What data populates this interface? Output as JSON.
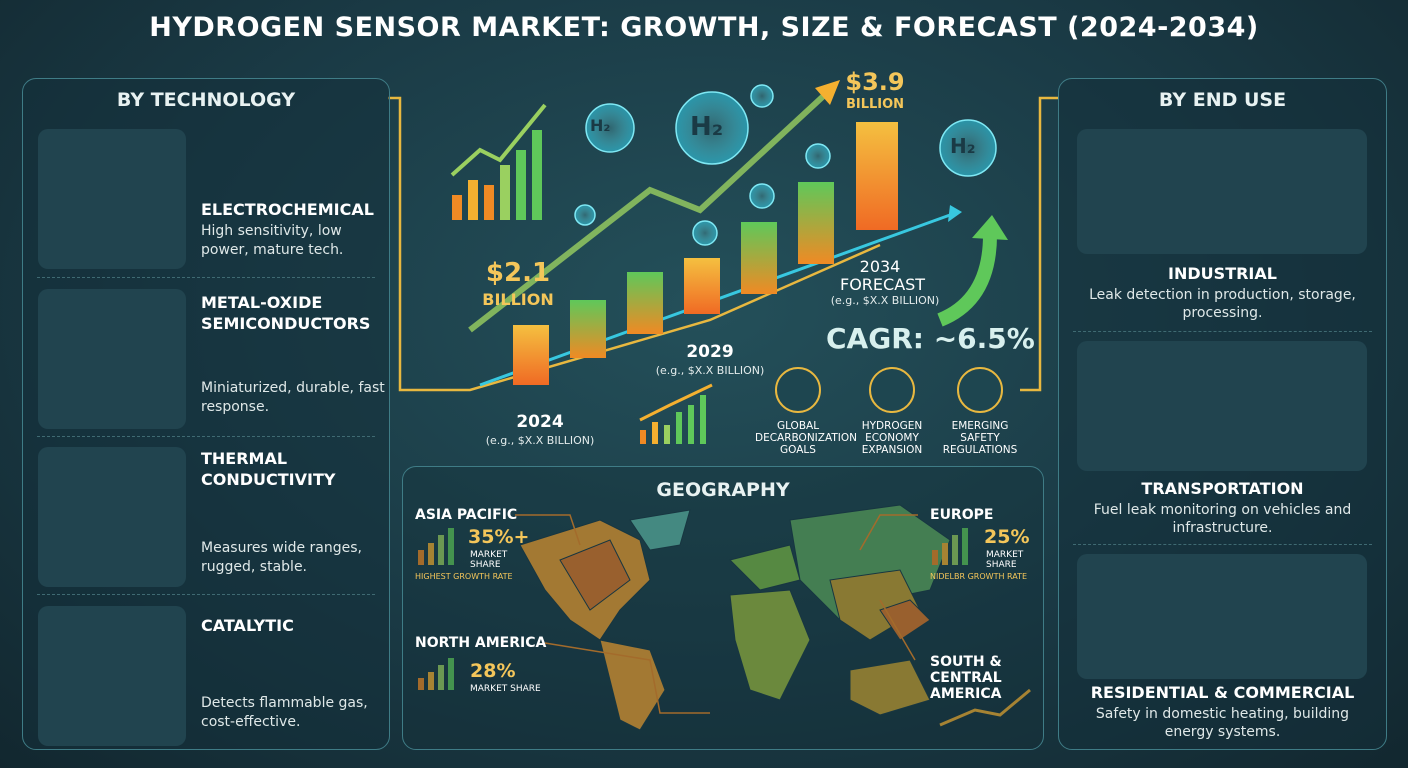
{
  "header": {
    "title": "HYDROGEN SENSOR MARKET: GROWTH, SIZE & FORECAST (2024-2034)"
  },
  "technology": {
    "heading": "BY TECHNOLOGY",
    "items": [
      {
        "name": "ELECTROCHEMICAL",
        "description": "High sensitivity, low power, mature tech."
      },
      {
        "name": "METAL-OXIDE SEMICONDUCTORS",
        "description": "Miniaturized, durable, fast response."
      },
      {
        "name": "THERMAL CONDUCTIVITY",
        "description": "Measures wide ranges, rugged, stable."
      },
      {
        "name": "CATALYTIC",
        "description": "Detects flammable gas, cost-effective."
      }
    ]
  },
  "growth": {
    "bubble_label": "H₂",
    "start_value": "$2.1",
    "start_unit": "BILLION",
    "end_value": "$3.9",
    "end_unit": "BILLION",
    "milestones": [
      {
        "year": "2024",
        "note": "(e.g., $X.X BILLION)"
      },
      {
        "year": "2029",
        "note": "(e.g., $X.X BILLION)"
      },
      {
        "year": "2034 FORECAST",
        "note": "(e.g., $X.X BILLION)"
      }
    ],
    "cagr": "CAGR: ~6.5%",
    "drivers": [
      "GLOBAL DECARBONIZATION GOALS",
      "HYDROGEN ECONOMY EXPANSION",
      "EMERGING SAFETY REGULATIONS"
    ]
  },
  "geography": {
    "heading": "GEOGRAPHY",
    "regions": [
      {
        "name": "ASIA PACIFIC",
        "share": "35%+",
        "share_label": "MARKET SHARE",
        "note": "HIGHEST GROWTH RATE"
      },
      {
        "name": "EUROPE",
        "share": "25%",
        "share_label": "MARKET SHARE",
        "note": "NIDELBR GROWTH RATE"
      },
      {
        "name": "NORTH AMERICA",
        "share": "28%",
        "share_label": "MARKET SHARE"
      },
      {
        "name": "SOUTH & CENTRAL AMERICA"
      }
    ]
  },
  "end_use": {
    "heading": "BY END USE",
    "items": [
      {
        "name": "INDUSTRIAL",
        "description": "Leak detection in production, storage, processing."
      },
      {
        "name": "TRANSPORTATION",
        "description": "Fuel leak monitoring on vehicles and infrastructure."
      },
      {
        "name": "RESIDENTIAL & COMMERCIAL",
        "description": "Safety in domestic heating, building energy systems."
      }
    ]
  }
}
